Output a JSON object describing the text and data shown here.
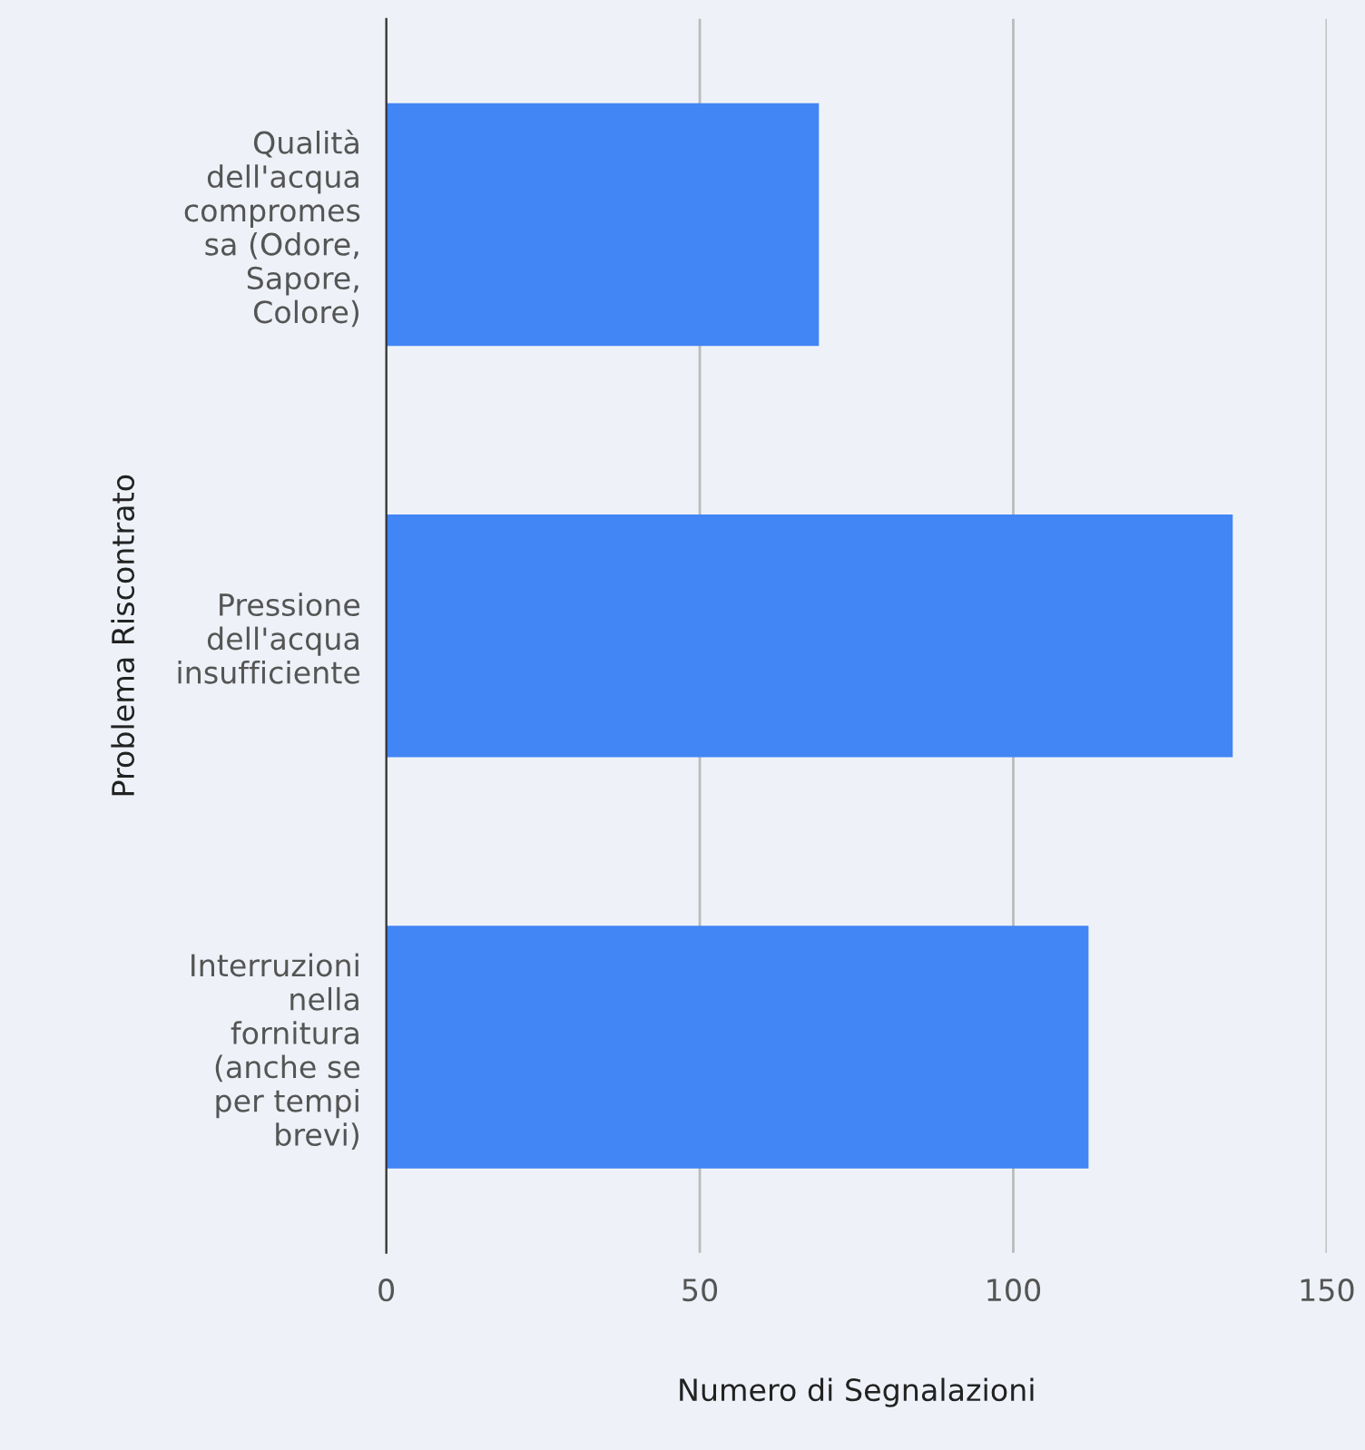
{
  "chart_data": {
    "type": "bar",
    "orientation": "horizontal",
    "xlabel": "Numero di Segnalazioni",
    "ylabel": "Problema Riscontrato",
    "categories": [
      "Qualità\ndell'acqua\ncompromes\nsa (Odore,\nSapore,\nColore)",
      "Pressione\ndell'acqua\ninsufficiente",
      "Interruzioni\nnella\nfornitura\n(anche se\nper tempi\nbrevi)"
    ],
    "values": [
      69,
      135,
      112
    ],
    "color": "#4285f4",
    "xlim": [
      0,
      150
    ],
    "xticks": [
      0,
      50,
      100,
      150
    ],
    "grid": "x",
    "legend": false
  }
}
